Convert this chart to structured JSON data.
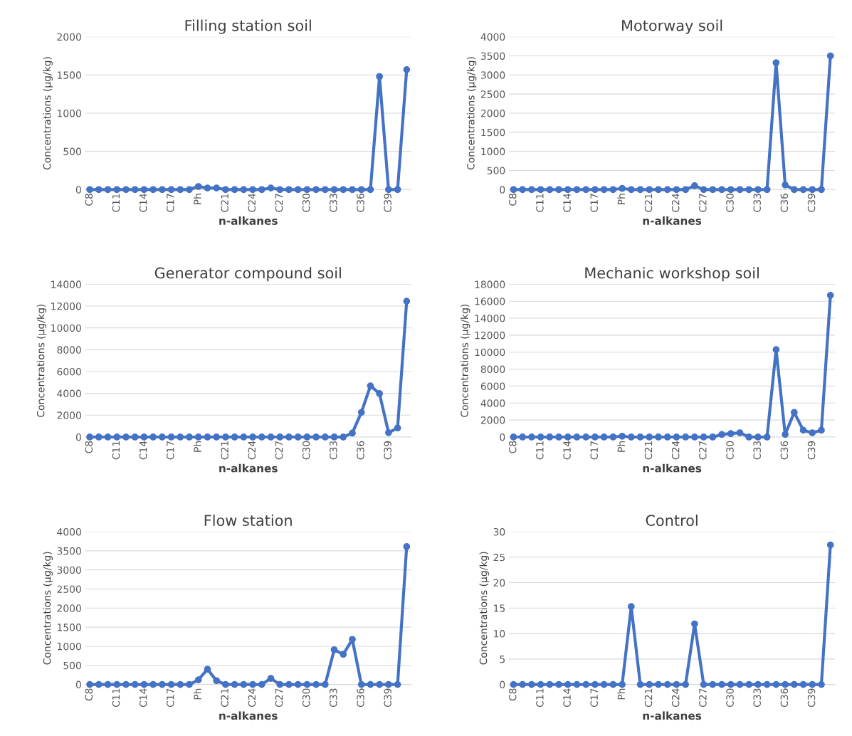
{
  "chart_data": [
    {
      "type": "line",
      "title": "Filling station soil",
      "xlabel": "n-alkanes",
      "ylabel": "Concentrations (µg/kg)",
      "categories": [
        "C8",
        null,
        null,
        "C11",
        null,
        null,
        "C14",
        null,
        null,
        "C17",
        null,
        null,
        "Ph",
        null,
        null,
        "C21",
        null,
        null,
        "C24",
        null,
        null,
        "C27",
        null,
        null,
        "C30",
        null,
        null,
        "C33",
        null,
        null,
        "C36",
        null,
        null,
        "C39",
        null,
        null
      ],
      "series": [
        {
          "color": "#4472c4",
          "values": [
            0,
            0,
            0,
            0,
            0,
            0,
            0,
            0,
            0,
            0,
            0,
            0,
            40,
            20,
            20,
            0,
            0,
            0,
            0,
            0,
            20,
            0,
            0,
            0,
            0,
            0,
            0,
            0,
            0,
            0,
            0,
            0,
            1480,
            0,
            0,
            1570
          ]
        }
      ],
      "ylim": [
        0,
        2000
      ],
      "yticks": [
        0,
        500,
        1000,
        1500,
        2000
      ],
      "grid": "y",
      "marker": "circle",
      "line_style": "solid"
    },
    {
      "type": "line",
      "title": "Motorway soil",
      "xlabel": "n-alkanes",
      "ylabel": "Concentrations (µg/kg)",
      "categories": [
        "C8",
        null,
        null,
        "C11",
        null,
        null,
        "C14",
        null,
        null,
        "C17",
        null,
        null,
        "Ph",
        null,
        null,
        "C21",
        null,
        null,
        "C24",
        null,
        null,
        "C27",
        null,
        null,
        "C30",
        null,
        null,
        "C33",
        null,
        null,
        "C36",
        null,
        null,
        "C39",
        null,
        null
      ],
      "series": [
        {
          "color": "#4472c4",
          "values": [
            0,
            0,
            0,
            0,
            0,
            0,
            0,
            0,
            0,
            0,
            0,
            0,
            30,
            0,
            0,
            0,
            0,
            0,
            0,
            0,
            100,
            0,
            0,
            0,
            0,
            0,
            0,
            0,
            0,
            3320,
            120,
            0,
            0,
            0,
            0,
            3500
          ]
        }
      ],
      "ylim": [
        0,
        4000
      ],
      "yticks": [
        0,
        500,
        1000,
        1500,
        2000,
        2500,
        3000,
        3500,
        4000
      ],
      "grid": "y",
      "marker": "circle",
      "line_style": "solid"
    },
    {
      "type": "line",
      "title": "Generator compound soil",
      "xlabel": "n-alkanes",
      "ylabel": "Concentrations (µg/kg)",
      "categories": [
        "C8",
        null,
        null,
        "C11",
        null,
        null,
        "C14",
        null,
        null,
        "C17",
        null,
        null,
        "Ph",
        null,
        null,
        "C21",
        null,
        null,
        "C24",
        null,
        null,
        "C27",
        null,
        null,
        "C30",
        null,
        null,
        "C33",
        null,
        null,
        "C36",
        null,
        null,
        "C39",
        null,
        null
      ],
      "series": [
        {
          "color": "#4472c4",
          "values": [
            0,
            0,
            0,
            0,
            0,
            0,
            0,
            0,
            0,
            0,
            0,
            0,
            0,
            0,
            0,
            0,
            0,
            0,
            0,
            0,
            0,
            0,
            0,
            0,
            0,
            0,
            0,
            0,
            0,
            360,
            2260,
            4690,
            3980,
            400,
            830,
            12450
          ]
        }
      ],
      "ylim": [
        0,
        14000
      ],
      "yticks": [
        0,
        2000,
        4000,
        6000,
        8000,
        10000,
        12000,
        14000
      ],
      "grid": "y",
      "marker": "circle",
      "line_style": "solid"
    },
    {
      "type": "line",
      "title": "Mechanic workshop soil",
      "xlabel": "n-alkanes",
      "ylabel": "Concentrations (µg/kg)",
      "categories": [
        "C8",
        null,
        null,
        "C11",
        null,
        null,
        "C14",
        null,
        null,
        "C17",
        null,
        null,
        "Ph",
        null,
        null,
        "C21",
        null,
        null,
        "C24",
        null,
        null,
        "C27",
        null,
        null,
        "C30",
        null,
        null,
        "C33",
        null,
        null,
        "C36",
        null,
        null,
        "C39",
        null,
        null
      ],
      "series": [
        {
          "color": "#4472c4",
          "values": [
            0,
            0,
            0,
            0,
            0,
            0,
            0,
            0,
            0,
            0,
            0,
            0,
            100,
            0,
            0,
            0,
            0,
            0,
            0,
            0,
            0,
            0,
            0,
            300,
            400,
            500,
            0,
            0,
            0,
            10300,
            300,
            2900,
            800,
            500,
            800,
            16700
          ]
        }
      ],
      "ylim": [
        0,
        18000
      ],
      "yticks": [
        0,
        2000,
        4000,
        6000,
        8000,
        10000,
        12000,
        14000,
        16000,
        18000
      ],
      "grid": "y",
      "marker": "circle",
      "line_style": "solid"
    },
    {
      "type": "line",
      "title": "Flow station",
      "xlabel": "n-alkanes",
      "ylabel": "Concentrations (µg/kg)",
      "categories": [
        "C8",
        null,
        null,
        "C11",
        null,
        null,
        "C14",
        null,
        null,
        "C17",
        null,
        null,
        "Ph",
        null,
        null,
        "C21",
        null,
        null,
        "C24",
        null,
        null,
        "C27",
        null,
        null,
        "C30",
        null,
        null,
        "C33",
        null,
        null,
        "C36",
        null,
        null,
        "C39",
        null,
        null
      ],
      "series": [
        {
          "color": "#4472c4",
          "values": [
            0,
            0,
            0,
            0,
            0,
            0,
            0,
            0,
            0,
            0,
            0,
            0,
            120,
            400,
            100,
            0,
            0,
            0,
            0,
            0,
            160,
            0,
            0,
            0,
            0,
            0,
            0,
            910,
            790,
            1180,
            0,
            0,
            0,
            0,
            0,
            3610
          ]
        }
      ],
      "ylim": [
        0,
        4000
      ],
      "yticks": [
        0,
        500,
        1000,
        1500,
        2000,
        2500,
        3000,
        3500,
        4000
      ],
      "grid": "y",
      "marker": "circle",
      "line_style": "solid"
    },
    {
      "type": "line",
      "title": "Control",
      "xlabel": "n-alkanes",
      "ylabel": "Concentrations (µg/kg)",
      "categories": [
        "C8",
        null,
        null,
        "C11",
        null,
        null,
        "C14",
        null,
        null,
        "C17",
        null,
        null,
        "Ph",
        null,
        null,
        "C21",
        null,
        null,
        "C24",
        null,
        null,
        "C27",
        null,
        null,
        "C30",
        null,
        null,
        "C33",
        null,
        null,
        "C36",
        null,
        null,
        "C39",
        null,
        null
      ],
      "series": [
        {
          "color": "#4472c4",
          "values": [
            0,
            0,
            0,
            0,
            0,
            0,
            0,
            0,
            0,
            0,
            0,
            0,
            0,
            15.3,
            0,
            0,
            0,
            0,
            0,
            0,
            11.9,
            0,
            0,
            0,
            0,
            0,
            0,
            0,
            0,
            0,
            0,
            0,
            0,
            0,
            0,
            27.4
          ]
        }
      ],
      "ylim": [
        0,
        30
      ],
      "yticks": [
        0,
        5,
        10,
        15,
        20,
        25,
        30
      ],
      "grid": "y",
      "marker": "circle",
      "line_style": "solid"
    }
  ]
}
